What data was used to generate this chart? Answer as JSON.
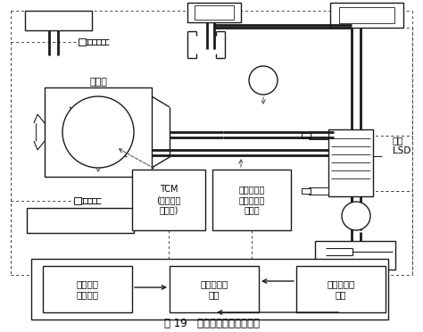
{
  "title": "图 19   防滑差速锁结构示意图",
  "title_fontsize": 8.5,
  "bg_color": "#ffffff",
  "line_color": "#1a1a1a",
  "dashed_color": "#444444",
  "label_throttle": "节气门",
  "label_tcm": "TCM\n(节气门控\n制模块)",
  "label_brake": "作用到空转\n车轮上的制\n动控制",
  "label_lsd": "黏性\nLSD",
  "label_non_drive": "非驱动轮\n输入转速",
  "label_slip": "驱动轮空转\n结论",
  "label_drive": "驱动轮输入\n转速"
}
